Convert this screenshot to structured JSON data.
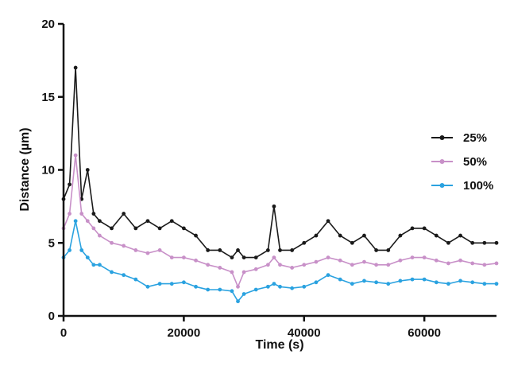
{
  "chart_data": {
    "type": "line",
    "xlabel": "Time (s)",
    "ylabel": "Distance (µm)",
    "xlim": [
      0,
      72000
    ],
    "ylim": [
      0,
      20
    ],
    "xticks": [
      0,
      20000,
      40000,
      60000
    ],
    "xtick_labels": [
      "0",
      "20000",
      "40000",
      "60000"
    ],
    "yticks": [
      0,
      5,
      10,
      15,
      20
    ],
    "ytick_labels": [
      "0",
      "5",
      "10",
      "15",
      "20"
    ],
    "grid": false,
    "legend": "right",
    "series": [
      {
        "name": "25%",
        "color": "#1a1a1a",
        "x": [
          0,
          1000,
          2000,
          3000,
          4000,
          5000,
          6000,
          8000,
          10000,
          12000,
          14000,
          16000,
          18000,
          20000,
          22000,
          24000,
          26000,
          28000,
          29000,
          30000,
          32000,
          34000,
          35000,
          36000,
          38000,
          40000,
          42000,
          44000,
          46000,
          48000,
          50000,
          52000,
          54000,
          56000,
          58000,
          60000,
          62000,
          64000,
          66000,
          68000,
          70000,
          72000
        ],
        "y": [
          8.0,
          9.0,
          17.0,
          8.0,
          10.0,
          7.0,
          6.5,
          6.0,
          7.0,
          6.0,
          6.5,
          6.0,
          6.5,
          6.0,
          5.5,
          4.5,
          4.5,
          4.0,
          4.5,
          4.0,
          4.0,
          4.5,
          7.5,
          4.5,
          4.5,
          5.0,
          5.5,
          6.5,
          5.5,
          5.0,
          5.5,
          4.5,
          4.5,
          5.5,
          6.0,
          6.0,
          5.5,
          5.0,
          5.5,
          5.0,
          5.0,
          5.0
        ]
      },
      {
        "name": "50%",
        "color": "#c890c8",
        "x": [
          0,
          1000,
          2000,
          3000,
          4000,
          5000,
          6000,
          8000,
          10000,
          12000,
          14000,
          16000,
          18000,
          20000,
          22000,
          24000,
          26000,
          28000,
          29000,
          30000,
          32000,
          34000,
          35000,
          36000,
          38000,
          40000,
          42000,
          44000,
          46000,
          48000,
          50000,
          52000,
          54000,
          56000,
          58000,
          60000,
          62000,
          64000,
          66000,
          68000,
          70000,
          72000
        ],
        "y": [
          6.0,
          7.0,
          11.0,
          7.0,
          6.5,
          6.0,
          5.5,
          5.0,
          4.8,
          4.5,
          4.3,
          4.5,
          4.0,
          4.0,
          3.8,
          3.5,
          3.3,
          3.0,
          2.0,
          3.0,
          3.2,
          3.5,
          4.0,
          3.5,
          3.3,
          3.5,
          3.7,
          4.0,
          3.8,
          3.5,
          3.7,
          3.5,
          3.5,
          3.8,
          4.0,
          4.0,
          3.8,
          3.6,
          3.8,
          3.6,
          3.5,
          3.6
        ]
      },
      {
        "name": "100%",
        "color": "#2aa2e0",
        "x": [
          0,
          1000,
          2000,
          3000,
          4000,
          5000,
          6000,
          8000,
          10000,
          12000,
          14000,
          16000,
          18000,
          20000,
          22000,
          24000,
          26000,
          28000,
          29000,
          30000,
          32000,
          34000,
          35000,
          36000,
          38000,
          40000,
          42000,
          44000,
          46000,
          48000,
          50000,
          52000,
          54000,
          56000,
          58000,
          60000,
          62000,
          64000,
          66000,
          68000,
          70000,
          72000
        ],
        "y": [
          4.0,
          4.5,
          6.5,
          4.5,
          4.0,
          3.5,
          3.5,
          3.0,
          2.8,
          2.5,
          2.0,
          2.2,
          2.2,
          2.3,
          2.0,
          1.8,
          1.8,
          1.7,
          1.0,
          1.5,
          1.8,
          2.0,
          2.2,
          2.0,
          1.9,
          2.0,
          2.3,
          2.8,
          2.5,
          2.2,
          2.4,
          2.3,
          2.2,
          2.4,
          2.5,
          2.5,
          2.3,
          2.2,
          2.4,
          2.3,
          2.2,
          2.2
        ]
      }
    ]
  }
}
